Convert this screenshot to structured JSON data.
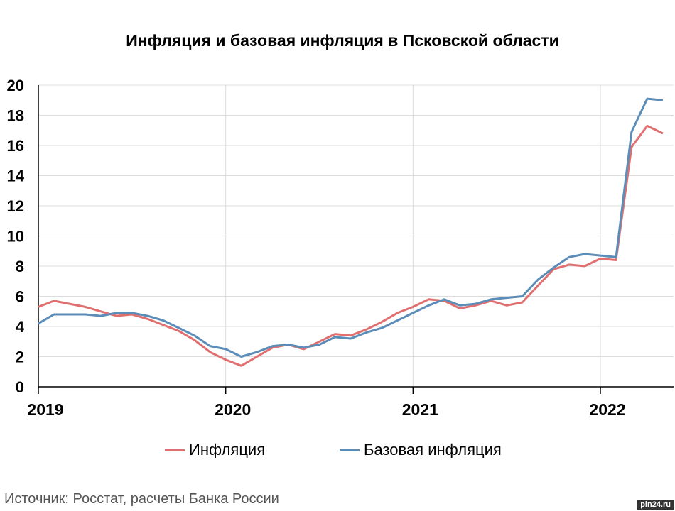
{
  "chart_data": {
    "type": "line",
    "title": "Инфляция и базовая инфляция в Псковской области",
    "xlabel": "",
    "ylabel": "",
    "ylim": [
      0,
      20
    ],
    "yticks": [
      0,
      2,
      4,
      6,
      8,
      10,
      12,
      14,
      16,
      18,
      20
    ],
    "xticks": [
      "2019",
      "2020",
      "2021",
      "2022"
    ],
    "xrange": [
      "2019-01",
      "2022-05"
    ],
    "grid": "vertical at year starts, horizontal at y ticks",
    "legend_position": "bottom",
    "x": [
      "2019-01",
      "2019-02",
      "2019-03",
      "2019-04",
      "2019-05",
      "2019-06",
      "2019-07",
      "2019-08",
      "2019-09",
      "2019-10",
      "2019-11",
      "2019-12",
      "2020-01",
      "2020-02",
      "2020-03",
      "2020-04",
      "2020-05",
      "2020-06",
      "2020-07",
      "2020-08",
      "2020-09",
      "2020-10",
      "2020-11",
      "2020-12",
      "2021-01",
      "2021-02",
      "2021-03",
      "2021-04",
      "2021-05",
      "2021-06",
      "2021-07",
      "2021-08",
      "2021-09",
      "2021-10",
      "2021-11",
      "2021-12",
      "2022-01",
      "2022-02",
      "2022-03",
      "2022-04",
      "2022-05"
    ],
    "series": [
      {
        "name": "Инфляция",
        "color": "#e07070",
        "values": [
          5.3,
          5.7,
          5.5,
          5.3,
          5.0,
          4.7,
          4.8,
          4.5,
          4.1,
          3.7,
          3.1,
          2.3,
          1.8,
          1.4,
          2.0,
          2.6,
          2.8,
          2.5,
          3.0,
          3.5,
          3.4,
          3.8,
          4.3,
          4.9,
          5.3,
          5.8,
          5.7,
          5.2,
          5.4,
          5.7,
          5.4,
          5.6,
          6.7,
          7.8,
          8.1,
          8.0,
          8.5,
          8.4,
          15.9,
          17.3,
          16.8
        ]
      },
      {
        "name": "Базовая инфляция",
        "color": "#5b8db8",
        "values": [
          4.2,
          4.8,
          4.8,
          4.8,
          4.7,
          4.9,
          4.9,
          4.7,
          4.4,
          3.9,
          3.4,
          2.7,
          2.5,
          2.0,
          2.3,
          2.7,
          2.8,
          2.6,
          2.8,
          3.3,
          3.2,
          3.6,
          3.9,
          4.4,
          4.9,
          5.4,
          5.8,
          5.4,
          5.5,
          5.8,
          5.9,
          6.0,
          7.1,
          7.9,
          8.6,
          8.8,
          8.7,
          8.6,
          16.9,
          19.1,
          19.0
        ]
      }
    ]
  },
  "source_text": "Источник: Росстат, расчеты Банка России",
  "watermark_text": "pln24.ru"
}
